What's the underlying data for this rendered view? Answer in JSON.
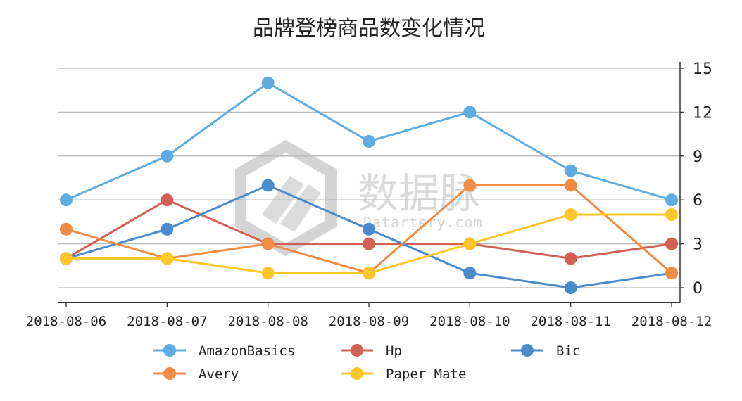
{
  "chart_data": {
    "type": "line",
    "title": "品牌登榜商品数变化情况",
    "categories": [
      "2018-08-06",
      "2018-08-07",
      "2018-08-08",
      "2018-08-09",
      "2018-08-10",
      "2018-08-11",
      "2018-08-12"
    ],
    "y_ticks": [
      0,
      3,
      6,
      9,
      12,
      15
    ],
    "ylim": [
      -1,
      15.5
    ],
    "y_axis_side": "right",
    "grid": "horizontal",
    "legend_position": "bottom",
    "series": [
      {
        "name": "AmazonBasics",
        "color": "#5DADE2",
        "values": [
          6,
          9,
          14,
          10,
          12,
          8,
          6
        ]
      },
      {
        "name": "Hp",
        "color": "#D45F55",
        "values": [
          2,
          6,
          3,
          3,
          3,
          2,
          3
        ]
      },
      {
        "name": "Bic",
        "color": "#4A8BD0",
        "values": [
          2,
          4,
          7,
          4,
          1,
          0,
          1
        ]
      },
      {
        "name": "Avery",
        "color": "#F28C45",
        "values": [
          4,
          2,
          3,
          1,
          7,
          7,
          1
        ]
      },
      {
        "name": "Paper Mate",
        "color": "#FFC627",
        "values": [
          2,
          2,
          1,
          1,
          3,
          5,
          5
        ]
      }
    ]
  },
  "watermark": {
    "text": "数据脉",
    "subtext": "Datartery.com"
  }
}
